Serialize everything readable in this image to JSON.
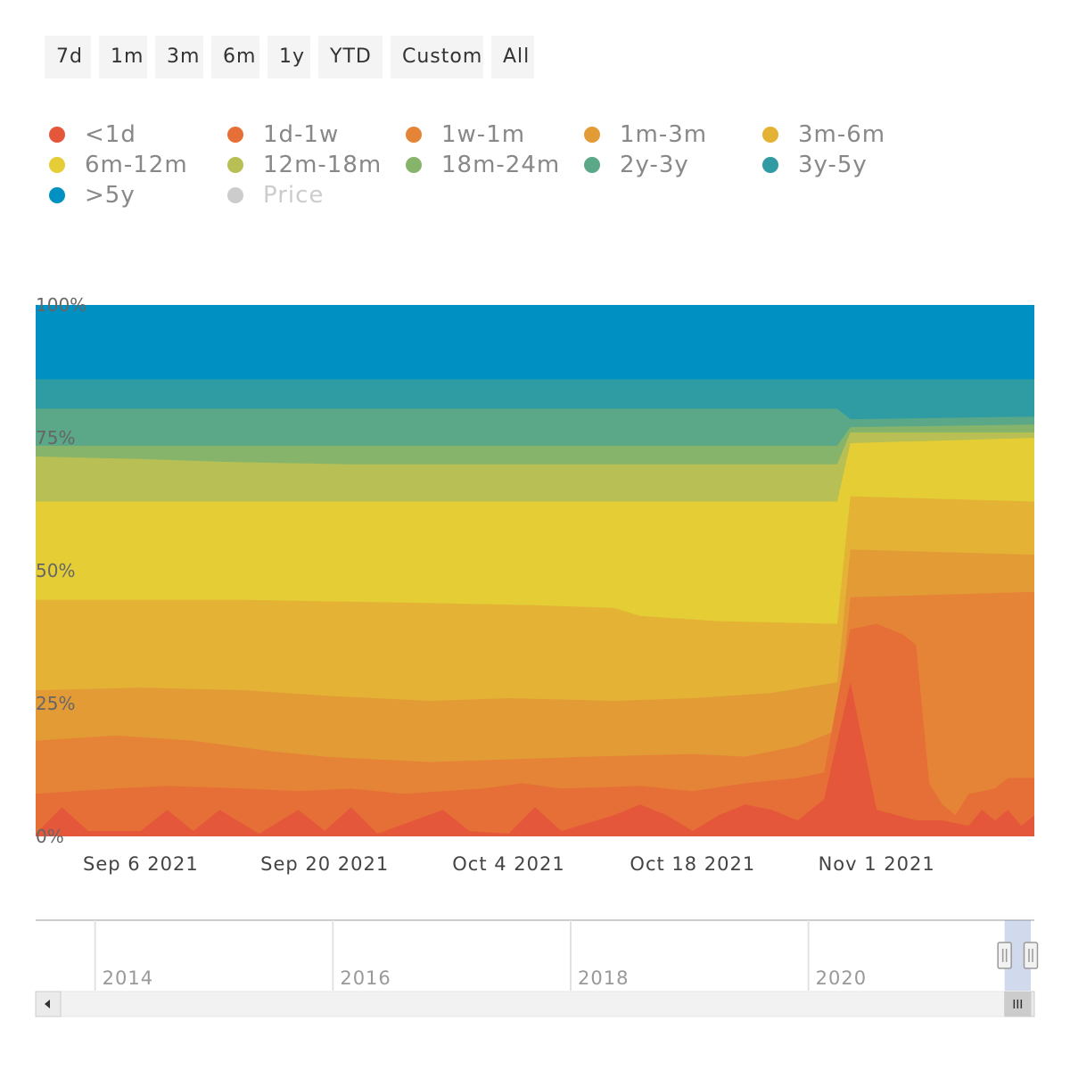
{
  "range_selector": {
    "buttons": [
      "7d",
      "1m",
      "3m",
      "6m",
      "1y",
      "YTD",
      "Custom",
      "All"
    ]
  },
  "legend": {
    "items": [
      {
        "label": "<1d",
        "color": "#e5573a",
        "visible": true
      },
      {
        "label": "1d-1w",
        "color": "#e56f36",
        "visible": true
      },
      {
        "label": "1w-1m",
        "color": "#e58436",
        "visible": true
      },
      {
        "label": "1m-3m",
        "color": "#e39b36",
        "visible": true
      },
      {
        "label": "3m-6m",
        "color": "#e4b336",
        "visible": true
      },
      {
        "label": "6m-12m",
        "color": "#e4cd35",
        "visible": true
      },
      {
        "label": "12m-18m",
        "color": "#b7bf55",
        "visible": true
      },
      {
        "label": "18m-24m",
        "color": "#86b46a",
        "visible": true
      },
      {
        "label": "2y-3y",
        "color": "#5aa887",
        "visible": true
      },
      {
        "label": "3y-5y",
        "color": "#2f9ba2",
        "visible": true
      },
      {
        "label": ">5y",
        "color": "#0090c2",
        "visible": true
      },
      {
        "label": "Price",
        "color": "#cccccc",
        "visible": false
      }
    ]
  },
  "chart_data": {
    "type": "area",
    "stacking": "percent",
    "y_axis": {
      "ticks": [
        "100%",
        "75%",
        "50%",
        "25%",
        "0%"
      ],
      "ylim": [
        0,
        100
      ]
    },
    "x_axis": {
      "ticks": [
        "Sep 6 2021",
        "Sep 20 2021",
        "Oct 4 2021",
        "Oct 18 2021",
        "Nov 1 2021"
      ],
      "range": [
        "2021-08-29",
        "2021-11-13"
      ]
    },
    "grid": false,
    "series_order_bottom_to_top": [
      "<1d",
      "1d-1w",
      "1w-1m",
      "1m-3m",
      "3m-6m",
      "6m-12m",
      "12m-18m",
      "18m-24m",
      "2y-3y",
      "3y-5y",
      ">5y"
    ],
    "boundaries_note": "Cumulative upper boundary (%) of each band; the >5y band fills to 100%.",
    "boundaries": {
      "<1d": [
        [
          "2021-08-29",
          0.5
        ],
        [
          "2021-08-31",
          5.5
        ],
        [
          "2021-09-02",
          1
        ],
        [
          "2021-09-06",
          1
        ],
        [
          "2021-09-08",
          5
        ],
        [
          "2021-09-10",
          1
        ],
        [
          "2021-09-12",
          5
        ],
        [
          "2021-09-15",
          0.5
        ],
        [
          "2021-09-18",
          5
        ],
        [
          "2021-09-20",
          1
        ],
        [
          "2021-09-22",
          5.5
        ],
        [
          "2021-09-24",
          0.5
        ],
        [
          "2021-09-29",
          5
        ],
        [
          "2021-10-01",
          1
        ],
        [
          "2021-10-04",
          0.5
        ],
        [
          "2021-10-06",
          5.5
        ],
        [
          "2021-10-08",
          1
        ],
        [
          "2021-10-12",
          4
        ],
        [
          "2021-10-14",
          6
        ],
        [
          "2021-10-16",
          4
        ],
        [
          "2021-10-18",
          1
        ],
        [
          "2021-10-20",
          4
        ],
        [
          "2021-10-22",
          6
        ],
        [
          "2021-10-24",
          5
        ],
        [
          "2021-10-26",
          3
        ],
        [
          "2021-10-28",
          7
        ],
        [
          "2021-10-30",
          29
        ],
        [
          "2021-11-01",
          5
        ],
        [
          "2021-11-04",
          3
        ],
        [
          "2021-11-06",
          3
        ],
        [
          "2021-11-08",
          2
        ],
        [
          "2021-11-09",
          5
        ],
        [
          "2021-11-10",
          3
        ],
        [
          "2021-11-11",
          5
        ],
        [
          "2021-11-12",
          2
        ],
        [
          "2021-11-13",
          4
        ]
      ],
      "1d-1w": [
        [
          "2021-08-29",
          8
        ],
        [
          "2021-09-04",
          9
        ],
        [
          "2021-09-08",
          9.5
        ],
        [
          "2021-09-14",
          9
        ],
        [
          "2021-09-18",
          8.5
        ],
        [
          "2021-09-22",
          9
        ],
        [
          "2021-09-26",
          8
        ],
        [
          "2021-10-02",
          9
        ],
        [
          "2021-10-05",
          10
        ],
        [
          "2021-10-08",
          9
        ],
        [
          "2021-10-14",
          9.5
        ],
        [
          "2021-10-18",
          8.5
        ],
        [
          "2021-10-22",
          10
        ],
        [
          "2021-10-26",
          11
        ],
        [
          "2021-10-28",
          12
        ],
        [
          "2021-10-30",
          39
        ],
        [
          "2021-11-01",
          40
        ],
        [
          "2021-11-03",
          38
        ],
        [
          "2021-11-04",
          36
        ],
        [
          "2021-11-05",
          10
        ],
        [
          "2021-11-06",
          6
        ],
        [
          "2021-11-07",
          4
        ],
        [
          "2021-11-08",
          8
        ],
        [
          "2021-11-10",
          9
        ],
        [
          "2021-11-11",
          11
        ],
        [
          "2021-11-13",
          11
        ]
      ],
      "1w-1m": [
        [
          "2021-08-29",
          18
        ],
        [
          "2021-09-04",
          19
        ],
        [
          "2021-09-10",
          18
        ],
        [
          "2021-09-16",
          16
        ],
        [
          "2021-09-20",
          15
        ],
        [
          "2021-09-28",
          14
        ],
        [
          "2021-10-04",
          14.5
        ],
        [
          "2021-10-10",
          15
        ],
        [
          "2021-10-18",
          15.5
        ],
        [
          "2021-10-22",
          15
        ],
        [
          "2021-10-26",
          17
        ],
        [
          "2021-10-29",
          20
        ],
        [
          "2021-10-30",
          45
        ],
        [
          "2021-11-13",
          46
        ]
      ],
      "1m-3m": [
        [
          "2021-08-29",
          27.5
        ],
        [
          "2021-09-06",
          28
        ],
        [
          "2021-09-14",
          27.5
        ],
        [
          "2021-09-20",
          26.5
        ],
        [
          "2021-09-28",
          25.5
        ],
        [
          "2021-10-04",
          26
        ],
        [
          "2021-10-12",
          25.5
        ],
        [
          "2021-10-18",
          26
        ],
        [
          "2021-10-24",
          27
        ],
        [
          "2021-10-29",
          29
        ],
        [
          "2021-10-30",
          54
        ],
        [
          "2021-11-13",
          53
        ]
      ],
      "3m-6m": [
        [
          "2021-08-29",
          44.5
        ],
        [
          "2021-09-14",
          44.5
        ],
        [
          "2021-09-26",
          44
        ],
        [
          "2021-10-06",
          43.5
        ],
        [
          "2021-10-12",
          43
        ],
        [
          "2021-10-14",
          41.5
        ],
        [
          "2021-10-20",
          40.5
        ],
        [
          "2021-10-29",
          40
        ],
        [
          "2021-10-30",
          64
        ],
        [
          "2021-11-13",
          63
        ]
      ],
      "6m-12m": [
        [
          "2021-08-29",
          63
        ],
        [
          "2021-10-29",
          63
        ],
        [
          "2021-10-30",
          74
        ],
        [
          "2021-11-13",
          75
        ]
      ],
      "12m-18m": [
        [
          "2021-08-29",
          71.5
        ],
        [
          "2021-09-06",
          71
        ],
        [
          "2021-09-12",
          70.5
        ],
        [
          "2021-09-22",
          70
        ],
        [
          "2021-10-29",
          70
        ],
        [
          "2021-10-30",
          76
        ],
        [
          "2021-11-13",
          76
        ]
      ],
      "18m-24m": [
        [
          "2021-08-29",
          73.5
        ],
        [
          "2021-10-29",
          73.5
        ],
        [
          "2021-10-30",
          77
        ],
        [
          "2021-11-13",
          77.5
        ]
      ],
      "2y-3y": [
        [
          "2021-08-29",
          80.5
        ],
        [
          "2021-10-29",
          80.5
        ],
        [
          "2021-10-30",
          78.5
        ],
        [
          "2021-11-13",
          79
        ]
      ],
      "3y-5y": [
        [
          "2021-08-29",
          86
        ],
        [
          "2021-11-13",
          86
        ]
      ],
      ">5y": [
        [
          "2021-08-29",
          100
        ],
        [
          "2021-11-13",
          100
        ]
      ]
    }
  },
  "navigator": {
    "year_labels": [
      "2014",
      "2016",
      "2018",
      "2020"
    ],
    "range_years": [
      2013.5,
      2021.9
    ],
    "selected_years": [
      2021.65,
      2021.87
    ]
  }
}
